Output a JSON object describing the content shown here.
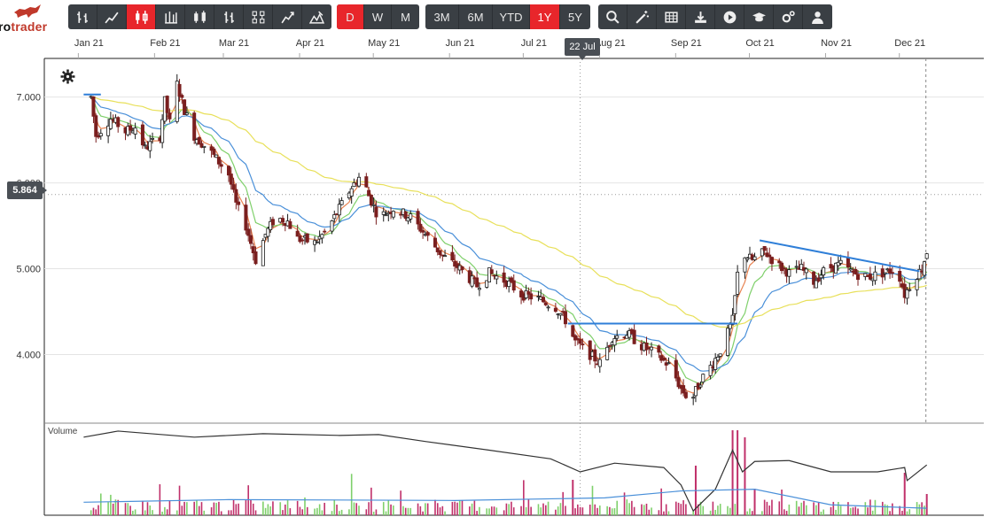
{
  "brand": {
    "text_part1": "ro",
    "text_part2": "trader"
  },
  "toolbar": {
    "chart_types": [
      {
        "icon": "ohlc-bars-icon"
      },
      {
        "icon": "line-chart-icon"
      },
      {
        "icon": "candlestick-icon",
        "active": true
      },
      {
        "icon": "hlc-bars-icon"
      },
      {
        "icon": "hollow-candles-icon"
      },
      {
        "icon": "colored-bars-icon"
      },
      {
        "icon": "heikin-ashi-icon"
      },
      {
        "icon": "point-figure-icon"
      },
      {
        "icon": "mountain-icon"
      }
    ],
    "periodicity": [
      {
        "label": "D",
        "active": true
      },
      {
        "label": "W",
        "active": false
      },
      {
        "label": "M",
        "active": false
      }
    ],
    "ranges": [
      {
        "label": "3M",
        "active": false
      },
      {
        "label": "6M",
        "active": false
      },
      {
        "label": "YTD",
        "active": false
      },
      {
        "label": "1Y",
        "active": true
      },
      {
        "label": "5Y",
        "active": false
      }
    ],
    "tools": [
      {
        "icon": "search-icon"
      },
      {
        "icon": "magic-wand-icon"
      },
      {
        "icon": "table-icon"
      },
      {
        "icon": "download-icon"
      },
      {
        "icon": "play-icon"
      },
      {
        "icon": "graduation-cap-icon"
      },
      {
        "icon": "settings-cogs-icon"
      },
      {
        "icon": "user-icon"
      }
    ]
  },
  "x_axis_labels": [
    "Jan 21",
    "Feb 21",
    "Mar 21",
    "Apr 21",
    "May 21",
    "Jun 21",
    "Jul 21",
    "Aug 21",
    "Sep 21",
    "Oct 21",
    "Nov 21",
    "Dec 21"
  ],
  "crosshair": {
    "date": "22 Jul",
    "price": "5.864"
  },
  "volume_label": "Volume",
  "colors": {
    "accent": "#e8262b",
    "toolbar": "#3a3f44",
    "candle_up": "#1a1a1a",
    "candle_down": "#7a1f1f",
    "ema_fast": "#e8814f",
    "ema_mid": "#7fd06b",
    "ema_slow": "#4a90d9",
    "sma_long": "#e8e05a",
    "trendline": "#2f7fd8"
  },
  "chart_data": {
    "type": "candlestick",
    "title": "",
    "ylabel": "",
    "y_ticks": [
      "7.000",
      "6.000",
      "5.000",
      "4.000"
    ],
    "ylim": [
      3.2,
      7.45
    ],
    "price_path": [
      [
        "2021-01-04",
        7.0
      ],
      [
        "2021-01-06",
        6.55
      ],
      [
        "2021-01-12",
        6.75
      ],
      [
        "2021-01-18",
        6.6
      ],
      [
        "2021-01-22",
        6.65
      ],
      [
        "2021-01-26",
        6.4
      ],
      [
        "2021-02-01",
        6.55
      ],
      [
        "2021-02-03",
        6.95
      ],
      [
        "2021-02-05",
        6.7
      ],
      [
        "2021-02-08",
        7.15
      ],
      [
        "2021-02-11",
        6.85
      ],
      [
        "2021-02-15",
        6.55
      ],
      [
        "2021-02-22",
        6.35
      ],
      [
        "2021-03-01",
        6.1
      ],
      [
        "2021-03-04",
        5.75
      ],
      [
        "2021-03-08",
        5.5
      ],
      [
        "2021-03-12",
        5.1
      ],
      [
        "2021-03-16",
        5.4
      ],
      [
        "2021-03-20",
        5.6
      ],
      [
        "2021-03-25",
        5.55
      ],
      [
        "2021-03-29",
        5.35
      ],
      [
        "2021-04-05",
        5.3
      ],
      [
        "2021-04-10",
        5.45
      ],
      [
        "2021-04-15",
        5.7
      ],
      [
        "2021-04-20",
        5.95
      ],
      [
        "2021-04-24",
        6.1
      ],
      [
        "2021-04-27",
        5.85
      ],
      [
        "2021-05-01",
        5.6
      ],
      [
        "2021-05-07",
        5.7
      ],
      [
        "2021-05-14",
        5.6
      ],
      [
        "2021-05-20",
        5.4
      ],
      [
        "2021-05-27",
        5.15
      ],
      [
        "2021-06-03",
        5.0
      ],
      [
        "2021-06-10",
        4.8
      ],
      [
        "2021-06-15",
        4.95
      ],
      [
        "2021-06-22",
        4.85
      ],
      [
        "2021-06-28",
        4.7
      ],
      [
        "2021-07-05",
        4.65
      ],
      [
        "2021-07-12",
        4.55
      ],
      [
        "2021-07-16",
        4.4
      ],
      [
        "2021-07-20",
        4.15
      ],
      [
        "2021-07-26",
        4.0
      ],
      [
        "2021-07-30",
        3.9
      ],
      [
        "2021-08-04",
        4.2
      ],
      [
        "2021-08-10",
        4.25
      ],
      [
        "2021-08-16",
        4.1
      ],
      [
        "2021-08-22",
        4.0
      ],
      [
        "2021-08-28",
        3.85
      ],
      [
        "2021-09-01",
        3.6
      ],
      [
        "2021-09-05",
        3.45
      ],
      [
        "2021-09-09",
        3.7
      ],
      [
        "2021-09-14",
        3.9
      ],
      [
        "2021-09-18",
        4.1
      ],
      [
        "2021-09-22",
        4.4
      ],
      [
        "2021-09-25",
        5.2
      ],
      [
        "2021-09-30",
        5.1
      ],
      [
        "2021-10-05",
        5.2
      ],
      [
        "2021-10-10",
        5.05
      ],
      [
        "2021-10-15",
        4.95
      ],
      [
        "2021-10-20",
        5.0
      ],
      [
        "2021-10-25",
        4.85
      ],
      [
        "2021-10-30",
        5.0
      ],
      [
        "2021-11-05",
        5.05
      ],
      [
        "2021-11-10",
        4.95
      ],
      [
        "2021-11-16",
        4.9
      ],
      [
        "2021-11-22",
        4.95
      ],
      [
        "2021-11-28",
        5.0
      ],
      [
        "2021-12-01",
        4.7
      ],
      [
        "2021-12-05",
        4.9
      ],
      [
        "2021-12-08",
        5.0
      ],
      [
        "2021-12-10",
        5.2
      ]
    ],
    "overlays": [
      {
        "kind": "horizontal",
        "y": 7.03,
        "x_from": "2021-01-01",
        "x_to": "2021-01-08"
      },
      {
        "kind": "horizontal",
        "y": 4.36,
        "x_from": "2021-07-17",
        "x_to": "2021-09-24"
      },
      {
        "kind": "trendline",
        "from": [
          "2021-10-03",
          5.33
        ],
        "to": [
          "2021-12-07",
          4.97
        ]
      }
    ],
    "moving_averages": [
      {
        "color_key": "ema_fast",
        "smoothing": 4
      },
      {
        "color_key": "ema_mid",
        "smoothing": 10
      },
      {
        "color_key": "ema_slow",
        "smoothing": 22
      },
      {
        "color_key": "sma_long",
        "smoothing": 80
      }
    ],
    "volume_line": [
      [
        "2021-01-01",
        0.9
      ],
      [
        "2021-01-15",
        0.97
      ],
      [
        "2021-02-15",
        0.9
      ],
      [
        "2021-03-15",
        0.94
      ],
      [
        "2021-04-15",
        0.92
      ],
      [
        "2021-05-01",
        0.93
      ],
      [
        "2021-05-20",
        0.85
      ],
      [
        "2021-06-15",
        0.75
      ],
      [
        "2021-07-10",
        0.65
      ],
      [
        "2021-07-22",
        0.5
      ],
      [
        "2021-08-05",
        0.6
      ],
      [
        "2021-08-25",
        0.55
      ],
      [
        "2021-09-01",
        0.35
      ],
      [
        "2021-09-06",
        0.05
      ],
      [
        "2021-09-15",
        0.3
      ],
      [
        "2021-09-22",
        0.75
      ],
      [
        "2021-09-26",
        0.5
      ],
      [
        "2021-10-01",
        0.62
      ],
      [
        "2021-10-15",
        0.63
      ],
      [
        "2021-11-01",
        0.5
      ],
      [
        "2021-11-20",
        0.5
      ],
      [
        "2021-12-01",
        0.55
      ],
      [
        "2021-12-02",
        0.4
      ],
      [
        "2021-12-10",
        0.58
      ]
    ],
    "volume_avg_line": [
      [
        "2021-01-01",
        0.15
      ],
      [
        "2021-03-01",
        0.18
      ],
      [
        "2021-06-01",
        0.17
      ],
      [
        "2021-08-01",
        0.2
      ],
      [
        "2021-09-01",
        0.28
      ],
      [
        "2021-10-01",
        0.3
      ],
      [
        "2021-11-01",
        0.12
      ],
      [
        "2021-12-10",
        0.08
      ]
    ]
  }
}
